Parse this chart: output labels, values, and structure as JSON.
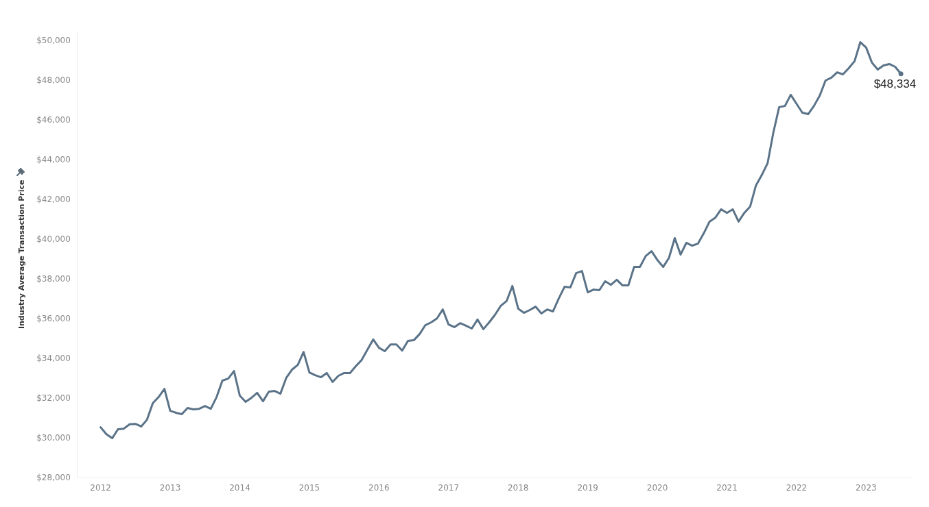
{
  "chart_data": {
    "type": "line",
    "ylabel": "Industry Average Transaction Price",
    "x": [
      "2012-01",
      "2012-02",
      "2012-03",
      "2012-04",
      "2012-05",
      "2012-06",
      "2012-07",
      "2012-08",
      "2012-09",
      "2012-10",
      "2012-11",
      "2012-12",
      "2013-01",
      "2013-02",
      "2013-03",
      "2013-04",
      "2013-05",
      "2013-06",
      "2013-07",
      "2013-08",
      "2013-09",
      "2013-10",
      "2013-11",
      "2013-12",
      "2014-01",
      "2014-02",
      "2014-03",
      "2014-04",
      "2014-05",
      "2014-06",
      "2014-07",
      "2014-08",
      "2014-09",
      "2014-10",
      "2014-11",
      "2014-12",
      "2015-01",
      "2015-02",
      "2015-03",
      "2015-04",
      "2015-05",
      "2015-06",
      "2015-07",
      "2015-08",
      "2015-09",
      "2015-10",
      "2015-11",
      "2015-12",
      "2016-01",
      "2016-02",
      "2016-03",
      "2016-04",
      "2016-05",
      "2016-06",
      "2016-07",
      "2016-08",
      "2016-09",
      "2016-10",
      "2016-11",
      "2016-12",
      "2017-01",
      "2017-02",
      "2017-03",
      "2017-04",
      "2017-05",
      "2017-06",
      "2017-07",
      "2017-08",
      "2017-09",
      "2017-10",
      "2017-11",
      "2017-12",
      "2018-01",
      "2018-02",
      "2018-03",
      "2018-04",
      "2018-05",
      "2018-06",
      "2018-07",
      "2018-08",
      "2018-09",
      "2018-10",
      "2018-11",
      "2018-12",
      "2019-01",
      "2019-02",
      "2019-03",
      "2019-04",
      "2019-05",
      "2019-06",
      "2019-07",
      "2019-08",
      "2019-09",
      "2019-10",
      "2019-11",
      "2019-12",
      "2020-01",
      "2020-02",
      "2020-03",
      "2020-04",
      "2020-05",
      "2020-06",
      "2020-07",
      "2020-08",
      "2020-09",
      "2020-10",
      "2020-11",
      "2020-12",
      "2021-01",
      "2021-02",
      "2021-03",
      "2021-04",
      "2021-05",
      "2021-06",
      "2021-07",
      "2021-08",
      "2021-09",
      "2021-10",
      "2021-11",
      "2021-12",
      "2022-01",
      "2022-02",
      "2022-03",
      "2022-04",
      "2022-05",
      "2022-06",
      "2022-07",
      "2022-08",
      "2022-09",
      "2022-10",
      "2022-11",
      "2022-12",
      "2023-01",
      "2023-02",
      "2023-03",
      "2023-04",
      "2023-05",
      "2023-06",
      "2023-07"
    ],
    "series": [
      {
        "color": "#5b7388",
        "values": [
          30550,
          30200,
          30000,
          30450,
          30480,
          30700,
          30720,
          30590,
          30930,
          31760,
          32070,
          32480,
          31380,
          31280,
          31210,
          31520,
          31450,
          31480,
          31620,
          31480,
          32070,
          32900,
          33000,
          33380,
          32140,
          31830,
          32030,
          32280,
          31860,
          32340,
          32380,
          32240,
          33030,
          33450,
          33690,
          34340,
          33310,
          33170,
          33070,
          33280,
          32830,
          33140,
          33280,
          33280,
          33620,
          33930,
          34450,
          34970,
          34550,
          34380,
          34720,
          34720,
          34410,
          34900,
          34930,
          35240,
          35690,
          35830,
          36030,
          36480,
          35720,
          35590,
          35790,
          35660,
          35520,
          35970,
          35490,
          35830,
          36210,
          36660,
          36900,
          37660,
          36520,
          36310,
          36450,
          36620,
          36280,
          36480,
          36380,
          37030,
          37620,
          37590,
          38310,
          38410,
          37340,
          37480,
          37450,
          37900,
          37720,
          37970,
          37690,
          37690,
          38620,
          38620,
          39170,
          39410,
          38970,
          38620,
          39070,
          40070,
          39240,
          39830,
          39690,
          39790,
          40310,
          40900,
          41100,
          41520,
          41340,
          41520,
          40900,
          41340,
          41660,
          42720,
          43240,
          43830,
          45380,
          46660,
          46720,
          47280,
          46830,
          46380,
          46310,
          46720,
          47240,
          48000,
          48140,
          48410,
          48310,
          48620,
          48970,
          49930,
          49660,
          48900,
          48550,
          48760,
          48830,
          48690,
          48334
        ]
      }
    ],
    "xlim": [
      "2011-09",
      "2023-09"
    ],
    "xticks": [
      {
        "value": "2012",
        "label": "2012"
      },
      {
        "value": "2013",
        "label": "2013"
      },
      {
        "value": "2014",
        "label": "2014"
      },
      {
        "value": "2015",
        "label": "2015"
      },
      {
        "value": "2016",
        "label": "2016"
      },
      {
        "value": "2017",
        "label": "2017"
      },
      {
        "value": "2018",
        "label": "2018"
      },
      {
        "value": "2019",
        "label": "2019"
      },
      {
        "value": "2020",
        "label": "2020"
      },
      {
        "value": "2021",
        "label": "2021"
      },
      {
        "value": "2022",
        "label": "2022"
      },
      {
        "value": "2023",
        "label": "2023"
      }
    ],
    "ylim": [
      28000,
      50500
    ],
    "yticks": [
      {
        "value": 28000,
        "label": "$28,000"
      },
      {
        "value": 30000,
        "label": "$30,000"
      },
      {
        "value": 32000,
        "label": "$32,000"
      },
      {
        "value": 34000,
        "label": "$34,000"
      },
      {
        "value": 36000,
        "label": "$36,000"
      },
      {
        "value": 38000,
        "label": "$38,000"
      },
      {
        "value": 40000,
        "label": "$40,000"
      },
      {
        "value": 42000,
        "label": "$42,000"
      },
      {
        "value": 44000,
        "label": "$44,000"
      },
      {
        "value": 46000,
        "label": "$46,000"
      },
      {
        "value": 48000,
        "label": "$48,000"
      },
      {
        "value": 50000,
        "label": "$50,000"
      }
    ],
    "annotations": [
      {
        "text": "$48,334",
        "x": "2023-07",
        "y": 48334
      }
    ],
    "grid": false,
    "legend": false,
    "marker": "none",
    "line_style": "solid"
  }
}
